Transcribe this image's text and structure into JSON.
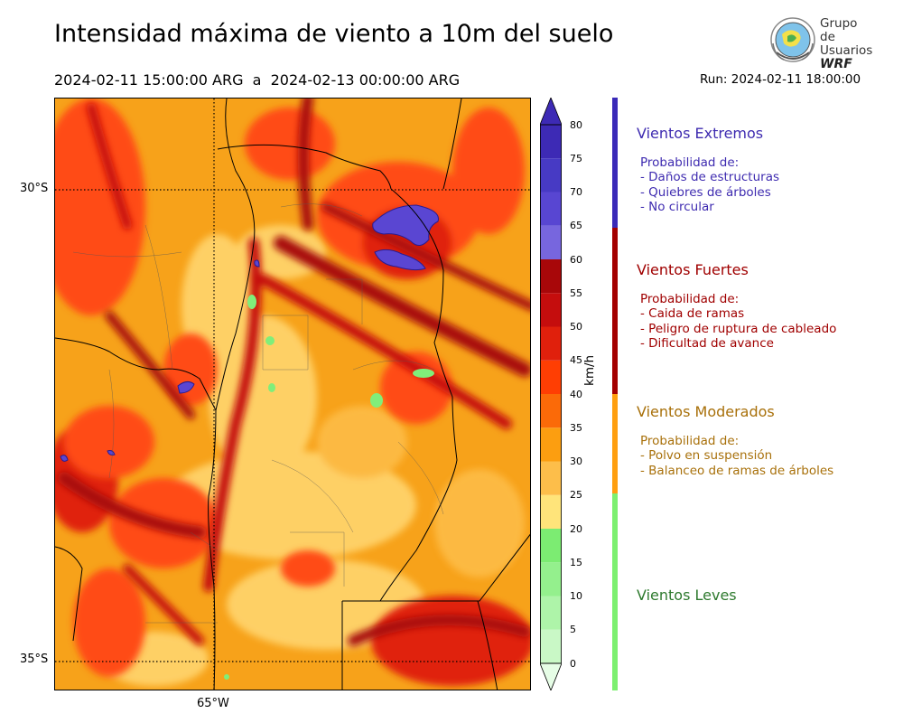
{
  "header": {
    "title": "Intensidad máxima de viento a 10m del suelo",
    "period": "2024-02-11 15:00:00 ARG  a  2024-02-13 00:00:00 ARG",
    "run": "Run: 2024-02-11 18:00:00"
  },
  "logo": {
    "line1": "Grupo de",
    "line2": "Usuarios",
    "line3": "WRF"
  },
  "map": {
    "lat_labels": [
      "30°S",
      "35°S"
    ],
    "lon_labels": [
      "65°W"
    ],
    "colors": {
      "background": "#f7a21a",
      "yellow": "#ffd36a",
      "light_orange": "#fdbb45",
      "orange_red": "#ff4c12",
      "red": "#e0200c",
      "dark_red": "#a80d10",
      "purple": "#5a46d2",
      "green": "#80ee7a"
    }
  },
  "colorbar": {
    "unit": "km/h",
    "ticks": [
      "0",
      "5",
      "10",
      "15",
      "20",
      "25",
      "30",
      "35",
      "40",
      "45",
      "50",
      "55",
      "60",
      "65",
      "70",
      "75",
      "80"
    ],
    "colors": [
      "#e6fde6",
      "#c9f8c6",
      "#aef4a9",
      "#94f08d",
      "#7cec72",
      "#ffe47a",
      "#fdbe4a",
      "#fc9e10",
      "#fb6a08",
      "#ff3e03",
      "#e0200c",
      "#c50d0d",
      "#a80709",
      "#7766de",
      "#5846d2",
      "#473ac4",
      "#3d2ab5"
    ],
    "tip_color": "#3d2ab5"
  },
  "categories": [
    {
      "title": "Vientos Extremos",
      "color": "#3e2bb0",
      "lines": [
        "Probabilidad de:",
        "- Daños de estructuras",
        "- Quiebres de árboles",
        "- No circular"
      ]
    },
    {
      "title": "Vientos Fuertes",
      "color": "#a00000",
      "lines": [
        "Probabilidad de:",
        "- Caida de ramas",
        "- Peligro de ruptura de cableado",
        "- Dificultad de avance"
      ]
    },
    {
      "title": "Vientos Moderados",
      "color": "#a8700a",
      "lines": [
        "Probabilidad de:",
        "- Polvo en suspensión",
        "- Balanceo de ramas de árboles"
      ]
    },
    {
      "title": "Vientos Leves",
      "color": "#2e7a2e",
      "lines": []
    }
  ]
}
